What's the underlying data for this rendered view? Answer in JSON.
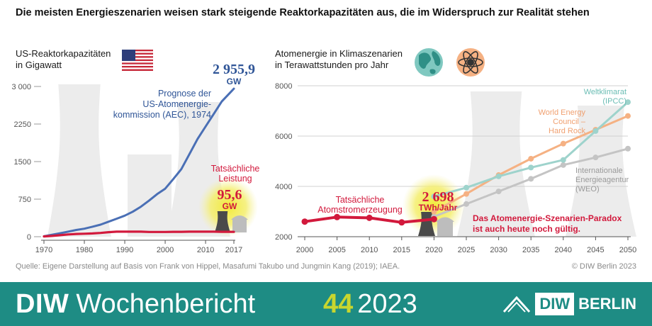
{
  "headline": "Die meisten Energieszenarien weisen stark steigende Reaktorkapazitäten aus, die im Widerspruch zur Realität stehen",
  "colors": {
    "blue": "#4a6fb5",
    "red": "#d2193c",
    "orange": "#f5b183",
    "teal": "#9ed3cc",
    "gray": "#c4c4c4",
    "footer": "#1e8c84",
    "accent": "#c8d62e"
  },
  "source": "Quelle: Eigene Darstellung auf Basis von Frank von Hippel, Masafumi Takubo und Jungmin Kang (2019); IAEA.",
  "copyright": "© DIW Berlin 2023",
  "footer": {
    "brand_bold": "DIW",
    "brand_rest": "Wochenbericht",
    "issue_num": "44",
    "issue_year": "2023",
    "logo_diw": "DIW",
    "logo_berlin": "BERLIN"
  },
  "icons": [
    "us-flag-icon",
    "globe-icon",
    "atom-icon",
    "cooling-tower-icon"
  ],
  "chart_data": [
    {
      "type": "line",
      "title": "US-Reaktorkapazitäten",
      "subtitle": "in Gigawatt",
      "xlim": [
        1970,
        2017
      ],
      "ylim": [
        0,
        3000
      ],
      "x_ticks": [
        "1970",
        "1980",
        "1990",
        "2000",
        "2010",
        "2017"
      ],
      "y_ticks": [
        "0",
        "750",
        "1500",
        "2250",
        "3 000"
      ],
      "series": [
        {
          "name": "Prognose der US-Atomenergie-kommission (AEC), 1974",
          "color": "#4a6fb5",
          "x": [
            1970,
            1972,
            1974,
            1976,
            1978,
            1980,
            1982,
            1984,
            1986,
            1988,
            1990,
            1992,
            1994,
            1996,
            1998,
            2000,
            2002,
            2004,
            2006,
            2008,
            2010,
            2012,
            2014,
            2016,
            2017
          ],
          "y": [
            10,
            40,
            70,
            100,
            135,
            160,
            200,
            240,
            300,
            360,
            420,
            500,
            600,
            720,
            850,
            960,
            1150,
            1350,
            1650,
            1950,
            2200,
            2450,
            2700,
            2870,
            2955.9
          ]
        },
        {
          "name": "Tatsächliche Leistung",
          "color": "#d2193c",
          "x": [
            1970,
            1972,
            1974,
            1976,
            1978,
            1980,
            1982,
            1984,
            1986,
            1988,
            1990,
            1992,
            1994,
            1996,
            1998,
            2000,
            2002,
            2004,
            2006,
            2008,
            2010,
            2012,
            2014,
            2016,
            2017
          ],
          "y": [
            5,
            15,
            30,
            45,
            55,
            60,
            65,
            75,
            90,
            100,
            100,
            100,
            100,
            95,
            95,
            95,
            98,
            98,
            100,
            100,
            100,
            100,
            98,
            98,
            95.6
          ]
        }
      ],
      "annotations": {
        "forecast_value": "2 955,9",
        "forecast_unit": "GW",
        "actual_value": "95,6",
        "actual_unit": "GW"
      }
    },
    {
      "type": "line",
      "title": "Atomenergie in Klimaszenarien",
      "subtitle": "in Terawattstunden pro Jahr",
      "xlim": [
        2000,
        2050
      ],
      "ylim": [
        2000,
        8000
      ],
      "x_ticks": [
        "2000",
        "2005",
        "2010",
        "2015",
        "2020",
        "2025",
        "2030",
        "2035",
        "2040",
        "2045",
        "2050"
      ],
      "y_ticks": [
        "2000",
        "4000",
        "6000",
        "8000"
      ],
      "series": [
        {
          "name": "Tatsächliche Atomstromerzeugung",
          "color": "#d2193c",
          "x": [
            2000,
            2005,
            2010,
            2015,
            2020
          ],
          "y": [
            2600,
            2780,
            2750,
            2570,
            2698
          ]
        },
        {
          "name": "Weltklimarat (IPCC)",
          "color": "#9ed3cc",
          "x": [
            2020,
            2025,
            2030,
            2035,
            2040,
            2045,
            2050
          ],
          "y": [
            3600,
            3950,
            4400,
            4750,
            5050,
            6200,
            7350
          ]
        },
        {
          "name": "World Energy Council – Hard Rock",
          "color": "#f5b183",
          "x": [
            2020,
            2025,
            2030,
            2035,
            2040,
            2045,
            2050
          ],
          "y": [
            3000,
            3700,
            4450,
            5100,
            5700,
            6250,
            6800
          ]
        },
        {
          "name": "Internationale Energieagentur (WEO)",
          "color": "#c4c4c4",
          "x": [
            2020,
            2025,
            2030,
            2035,
            2040,
            2045,
            2050
          ],
          "y": [
            2800,
            3300,
            3800,
            4300,
            4850,
            5150,
            5500
          ]
        }
      ],
      "labels": {
        "ipcc_1": "Weltklimarat",
        "ipcc_2": "(IPCC)",
        "wec_1": "World Energy",
        "wec_2": "Council –",
        "wec_3": "Hard Rock",
        "weo_1": "Internationale",
        "weo_2": "Energieagentur",
        "weo_3": "(WEO)",
        "actual_1": "Tatsächliche",
        "actual_2": "Atomstromerzeugung",
        "value": "2 698",
        "unit": "TWh/Jahr",
        "paradox_1": "Das Atomenergie-Szenarien-Paradox",
        "paradox_2": "ist auch heute noch gültig."
      }
    }
  ]
}
